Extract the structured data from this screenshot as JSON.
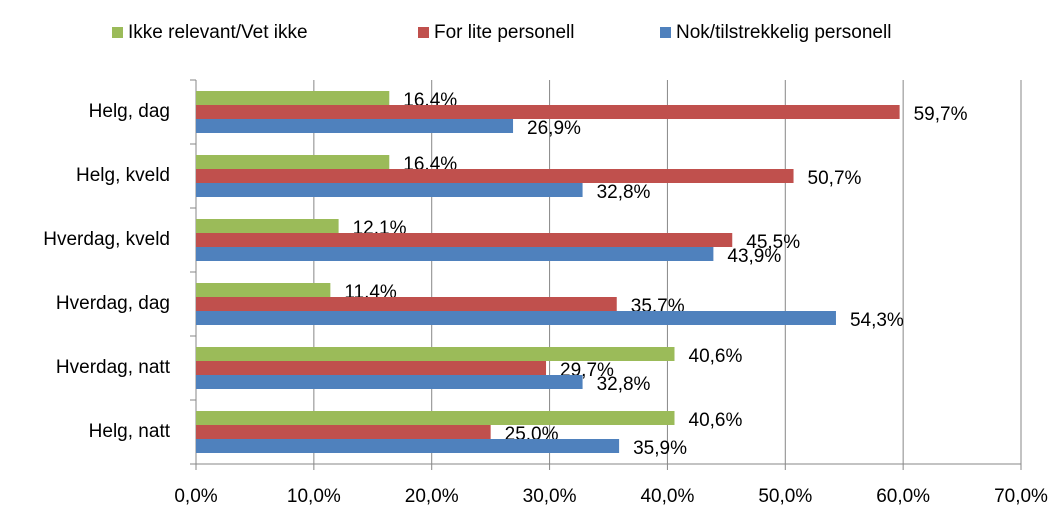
{
  "chart_data": {
    "type": "hbar",
    "categories": [
      "Helg, dag",
      "Helg, kveld",
      "Hverdag, kveld",
      "Hverdag, dag",
      "Hverdag, natt",
      "Helg, natt"
    ],
    "series": [
      {
        "name": "Ikke relevant/Vet ikke",
        "color": "#9bbb59",
        "values": [
          16.4,
          16.4,
          12.1,
          11.4,
          40.6,
          40.6
        ],
        "value_labels": [
          "16,4%",
          "16,4%",
          "12,1%",
          "11,4%",
          "40,6%",
          "40,6%"
        ]
      },
      {
        "name": "For lite personell",
        "color": "#c0504d",
        "values": [
          59.7,
          50.7,
          45.5,
          35.7,
          29.7,
          25.0
        ],
        "value_labels": [
          "59,7%",
          "50,7%",
          "45,5%",
          "35,7%",
          "29,7%",
          "25,0%"
        ]
      },
      {
        "name": "Nok/tilstrekkelig personell",
        "color": "#4f81bd",
        "values": [
          26.9,
          32.8,
          43.9,
          54.3,
          32.8,
          35.9
        ],
        "value_labels": [
          "26,9%",
          "32,8%",
          "43,9%",
          "54,3%",
          "32,8%",
          "35,9%"
        ]
      }
    ],
    "xlim": [
      0,
      70
    ],
    "xticks": [
      {
        "value": 0,
        "label": "0,0%"
      },
      {
        "value": 10,
        "label": "10,0%"
      },
      {
        "value": 20,
        "label": "20,0%"
      },
      {
        "value": 30,
        "label": "30,0%"
      },
      {
        "value": 40,
        "label": "40,0%"
      },
      {
        "value": 50,
        "label": "50,0%"
      },
      {
        "value": 60,
        "label": "60,0%"
      },
      {
        "value": 70,
        "label": "70,0%"
      }
    ],
    "grid": true,
    "legend": "top"
  }
}
